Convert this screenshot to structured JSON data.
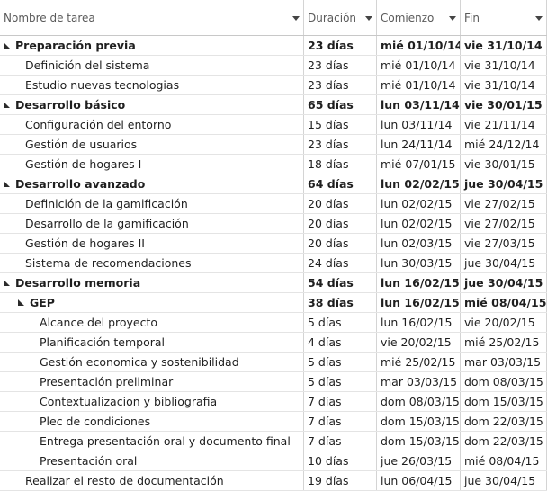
{
  "header": {
    "name": "Nombre de tarea",
    "duration": "Duración",
    "start": "Comienzo",
    "end": "Fin"
  },
  "rows": [
    {
      "name": "Preparación previa",
      "duration": "23 días",
      "start": "mié 01/10/14",
      "end": "vie 31/10/14",
      "level": 0,
      "summary": true
    },
    {
      "name": "Definición del sistema",
      "duration": "23 días",
      "start": "mié 01/10/14",
      "end": "vie 31/10/14",
      "level": 1,
      "summary": false
    },
    {
      "name": "Estudio nuevas tecnologias",
      "duration": "23 días",
      "start": "mié 01/10/14",
      "end": "vie 31/10/14",
      "level": 1,
      "summary": false
    },
    {
      "name": "Desarrollo básico",
      "duration": "65 días",
      "start": "lun 03/11/14",
      "end": "vie 30/01/15",
      "level": 0,
      "summary": true
    },
    {
      "name": "Configuración del entorno",
      "duration": "15 días",
      "start": "lun 03/11/14",
      "end": "vie 21/11/14",
      "level": 1,
      "summary": false
    },
    {
      "name": "Gestión de usuarios",
      "duration": "23 días",
      "start": "lun 24/11/14",
      "end": "mié 24/12/14",
      "level": 1,
      "summary": false
    },
    {
      "name": "Gestión de hogares I",
      "duration": "18 días",
      "start": "mié 07/01/15",
      "end": "vie 30/01/15",
      "level": 1,
      "summary": false
    },
    {
      "name": "Desarrollo avanzado",
      "duration": "64 días",
      "start": "lun 02/02/15",
      "end": "jue 30/04/15",
      "level": 0,
      "summary": true
    },
    {
      "name": "Definición de la gamificación",
      "duration": "20 días",
      "start": "lun 02/02/15",
      "end": "vie 27/02/15",
      "level": 1,
      "summary": false
    },
    {
      "name": "Desarrollo de la gamificación",
      "duration": "20 días",
      "start": "lun 02/02/15",
      "end": "vie 27/02/15",
      "level": 1,
      "summary": false
    },
    {
      "name": "Gestión de hogares II",
      "duration": "20 días",
      "start": "lun 02/03/15",
      "end": "vie 27/03/15",
      "level": 1,
      "summary": false
    },
    {
      "name": "Sistema de recomendaciones",
      "duration": "24 días",
      "start": "lun 30/03/15",
      "end": "jue 30/04/15",
      "level": 1,
      "summary": false
    },
    {
      "name": "Desarrollo memoria",
      "duration": "54 días",
      "start": "lun 16/02/15",
      "end": "jue 30/04/15",
      "level": 0,
      "summary": true
    },
    {
      "name": "GEP",
      "duration": "38 días",
      "start": "lun 16/02/15",
      "end": "mié 08/04/15",
      "level": 1,
      "summary": true
    },
    {
      "name": "Alcance del proyecto",
      "duration": "5 días",
      "start": "lun 16/02/15",
      "end": "vie 20/02/15",
      "level": 2,
      "summary": false
    },
    {
      "name": "Planificación temporal",
      "duration": "4 días",
      "start": "vie 20/02/15",
      "end": "mié 25/02/15",
      "level": 2,
      "summary": false
    },
    {
      "name": "Gestión economica y sostenibilidad",
      "duration": "5 días",
      "start": "mié 25/02/15",
      "end": "mar 03/03/15",
      "level": 2,
      "summary": false
    },
    {
      "name": "Presentación preliminar",
      "duration": "5 días",
      "start": "mar 03/03/15",
      "end": "dom 08/03/15",
      "level": 2,
      "summary": false
    },
    {
      "name": "Contextualizacion y bibliografia",
      "duration": "7 días",
      "start": "dom 08/03/15",
      "end": "dom 15/03/15",
      "level": 2,
      "summary": false
    },
    {
      "name": "Plec de condiciones",
      "duration": "7 días",
      "start": "dom 15/03/15",
      "end": "dom 22/03/15",
      "level": 2,
      "summary": false
    },
    {
      "name": "Entrega presentación oral y documento final",
      "duration": "7 días",
      "start": "dom 15/03/15",
      "end": "dom 22/03/15",
      "level": 2,
      "summary": false
    },
    {
      "name": "Presentación oral",
      "duration": "10 días",
      "start": "jue 26/03/15",
      "end": "mié 08/04/15",
      "level": 2,
      "summary": false
    },
    {
      "name": "Realizar el resto de documentación",
      "duration": "19 días",
      "start": "lun 06/04/15",
      "end": "jue 30/04/15",
      "level": 1,
      "summary": false
    }
  ]
}
